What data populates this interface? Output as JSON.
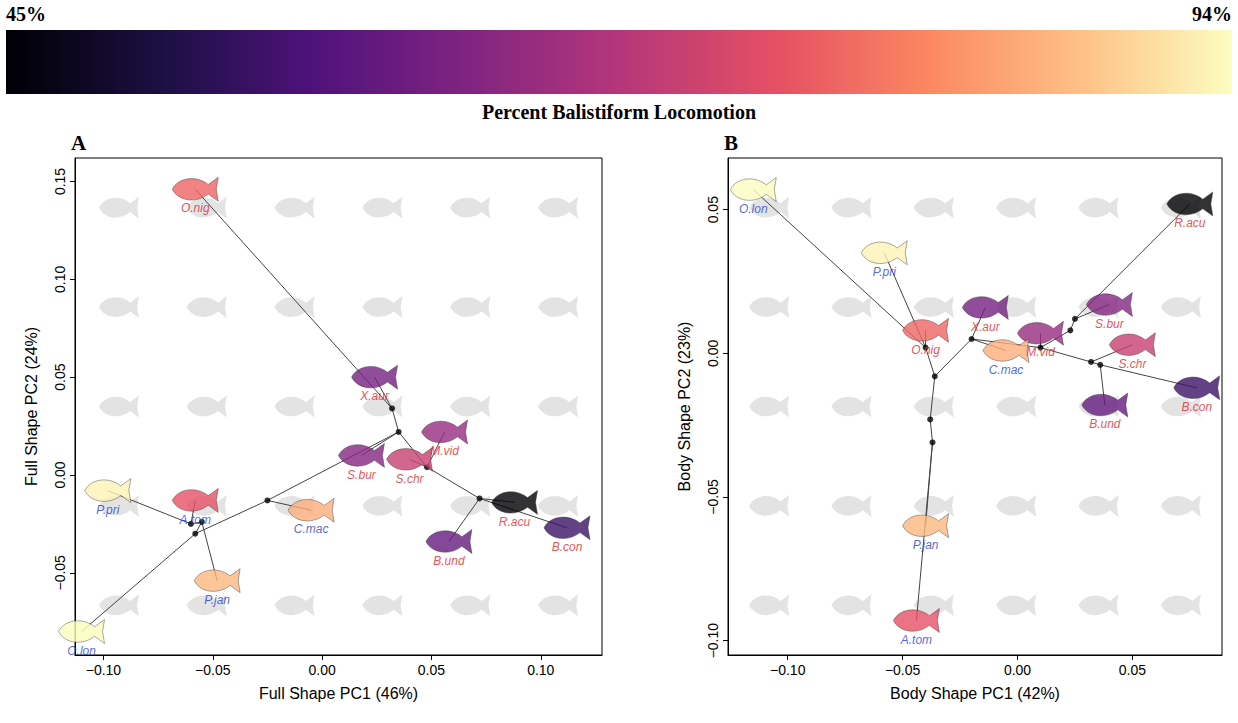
{
  "colorbar": {
    "title": "Percent Balistiform Locomotion",
    "range": [
      45,
      94
    ],
    "ticks": [
      {
        "value": 45,
        "label": "45%"
      },
      {
        "value": 94,
        "label": "94%"
      }
    ]
  },
  "chart_data": [
    {
      "type": "scatter",
      "panel": "A",
      "x_label": "Full Shape PC1 (46%)",
      "y_label": "Full Shape PC2 (24%)",
      "xlim": [
        -0.113,
        0.128
      ],
      "ylim": [
        -0.092,
        0.162
      ],
      "xticks": [
        {
          "value": -0.1,
          "label": "−0.10"
        },
        {
          "value": -0.05,
          "label": "−0.05"
        },
        {
          "value": 0,
          "label": "0.00"
        },
        0.05,
        {
          "value": 0.1,
          "label": "0.10"
        }
      ],
      "yticks": [
        {
          "value": -0.05,
          "label": "−0.05"
        },
        {
          "value": 0,
          "label": "0.00"
        },
        0.05,
        {
          "value": 0.1,
          "label": "0.10"
        },
        0.15
      ],
      "series": [
        {
          "color": "#e3242b",
          "points": [
            {
              "label": "O.nig",
              "x": -0.058,
              "y": 0.146,
              "balistiform": 78
            },
            {
              "label": "X.aur",
              "x": 0.024,
              "y": 0.05,
              "balistiform": 62
            },
            {
              "label": "M.vid",
              "x": 0.056,
              "y": 0.022,
              "balistiform": 66
            },
            {
              "label": "S.bur",
              "x": 0.018,
              "y": 0.01,
              "balistiform": 64
            },
            {
              "label": "S.chr",
              "x": 0.04,
              "y": 0.008,
              "balistiform": 72
            },
            {
              "label": "R.acu",
              "x": 0.088,
              "y": -0.014,
              "balistiform": 45
            },
            {
              "label": "B.und",
              "x": 0.058,
              "y": -0.034,
              "balistiform": 60
            },
            {
              "label": "B.con",
              "x": 0.112,
              "y": -0.027,
              "balistiform": 55
            }
          ]
        },
        {
          "color": "#1f3fd6",
          "points": [
            {
              "label": "A.tom",
              "x": -0.058,
              "y": -0.013,
              "balistiform": 76
            },
            {
              "label": "P.pri",
              "x": -0.098,
              "y": -0.008,
              "balistiform": 93
            },
            {
              "label": "C.mac",
              "x": -0.005,
              "y": -0.018,
              "balistiform": 86
            },
            {
              "label": "P.jan",
              "x": -0.048,
              "y": -0.054,
              "balistiform": 87
            },
            {
              "label": "O.lon",
              "x": -0.11,
              "y": -0.08,
              "balistiform": 94
            }
          ]
        }
      ],
      "nodes": [
        [
          -0.058,
          -0.03
        ],
        [
          -0.055,
          -0.024
        ],
        [
          -0.06,
          -0.025
        ],
        [
          -0.025,
          -0.013
        ],
        [
          0.032,
          0.034
        ],
        [
          0.035,
          0.022
        ],
        [
          0.048,
          0.004
        ],
        [
          0.072,
          -0.012
        ]
      ],
      "branches": [
        [
          -0.11,
          -0.08,
          -0.058,
          -0.03
        ],
        [
          -0.058,
          -0.03,
          -0.025,
          -0.013
        ],
        [
          -0.058,
          -0.03,
          -0.055,
          -0.024
        ],
        [
          -0.055,
          -0.024,
          -0.048,
          -0.054
        ],
        [
          -0.055,
          -0.024,
          -0.06,
          -0.025
        ],
        [
          -0.06,
          -0.025,
          -0.098,
          -0.008
        ],
        [
          -0.06,
          -0.025,
          -0.058,
          -0.013
        ],
        [
          -0.025,
          -0.013,
          -0.005,
          -0.018
        ],
        [
          -0.025,
          -0.013,
          0.035,
          0.022
        ],
        [
          0.035,
          0.022,
          0.032,
          0.034
        ],
        [
          0.032,
          0.034,
          0.024,
          0.05
        ],
        [
          0.032,
          0.034,
          -0.058,
          0.146
        ],
        [
          0.035,
          0.022,
          0.018,
          0.01
        ],
        [
          0.035,
          0.022,
          0.048,
          0.004
        ],
        [
          0.048,
          0.004,
          0.056,
          0.022
        ],
        [
          0.048,
          0.004,
          0.04,
          0.008
        ],
        [
          0.048,
          0.004,
          0.072,
          -0.012
        ],
        [
          0.072,
          -0.012,
          0.058,
          -0.034
        ],
        [
          0.072,
          -0.012,
          0.088,
          -0.014
        ],
        [
          0.072,
          -0.012,
          0.112,
          -0.027
        ]
      ]
    },
    {
      "type": "scatter",
      "panel": "B",
      "x_label": "Body Shape PC1 (42%)",
      "y_label": "Body Shape PC2 (23%)",
      "xlim": [
        -0.126,
        0.089
      ],
      "ylim": [
        -0.105,
        0.068
      ],
      "xticks": [
        {
          "value": -0.1,
          "label": "−0.10"
        },
        {
          "value": -0.05,
          "label": "−0.05"
        },
        {
          "value": 0,
          "label": "0.00"
        },
        0.05
      ],
      "yticks": [
        {
          "value": -0.1,
          "label": "−0.10"
        },
        {
          "value": -0.05,
          "label": "−0.05"
        },
        {
          "value": 0,
          "label": "0.00"
        },
        0.05
      ],
      "series": [
        {
          "color": "#e3242b",
          "points": [
            {
              "label": "O.nig",
              "x": -0.04,
              "y": 0.008,
              "balistiform": 78
            },
            {
              "label": "X.aur",
              "x": -0.014,
              "y": 0.016,
              "balistiform": 62
            },
            {
              "label": "M.vid",
              "x": 0.01,
              "y": 0.007,
              "balistiform": 66
            },
            {
              "label": "S.bur",
              "x": 0.04,
              "y": 0.017,
              "balistiform": 64
            },
            {
              "label": "S.chr",
              "x": 0.05,
              "y": 0.003,
              "balistiform": 72
            },
            {
              "label": "R.acu",
              "x": 0.075,
              "y": 0.052,
              "balistiform": 45
            },
            {
              "label": "B.und",
              "x": 0.038,
              "y": -0.018,
              "balistiform": 60
            },
            {
              "label": "B.con",
              "x": 0.078,
              "y": -0.012,
              "balistiform": 55
            }
          ]
        },
        {
          "color": "#1f3fd6",
          "points": [
            {
              "label": "O.lon",
              "x": -0.115,
              "y": 0.057,
              "balistiform": 94
            },
            {
              "label": "P.pri",
              "x": -0.058,
              "y": 0.035,
              "balistiform": 93
            },
            {
              "label": "C.mac",
              "x": -0.005,
              "y": 0.001,
              "balistiform": 86
            },
            {
              "label": "P.jan",
              "x": -0.04,
              "y": -0.06,
              "balistiform": 87
            },
            {
              "label": "A.tom",
              "x": -0.044,
              "y": -0.093,
              "balistiform": 76
            }
          ]
        }
      ],
      "nodes": [
        [
          -0.04,
          0.002
        ],
        [
          -0.036,
          -0.008
        ],
        [
          -0.038,
          -0.023
        ],
        [
          -0.037,
          -0.031
        ],
        [
          -0.02,
          0.005
        ],
        [
          0.01,
          0.002
        ],
        [
          0.023,
          0.008
        ],
        [
          0.025,
          0.012
        ],
        [
          0.032,
          -0.003
        ],
        [
          0.036,
          -0.004
        ]
      ],
      "branches": [
        [
          -0.115,
          0.057,
          -0.04,
          0.002
        ],
        [
          -0.058,
          0.035,
          -0.04,
          0.002
        ],
        [
          -0.04,
          0.002,
          -0.04,
          0.008
        ],
        [
          -0.04,
          0.002,
          -0.036,
          -0.008
        ],
        [
          -0.036,
          -0.008,
          -0.038,
          -0.023
        ],
        [
          -0.038,
          -0.023,
          -0.037,
          -0.031
        ],
        [
          -0.037,
          -0.031,
          -0.04,
          -0.06
        ],
        [
          -0.037,
          -0.031,
          -0.044,
          -0.093
        ],
        [
          -0.036,
          -0.008,
          -0.02,
          0.005
        ],
        [
          -0.02,
          0.005,
          -0.014,
          0.016
        ],
        [
          -0.02,
          0.005,
          -0.005,
          0.001
        ],
        [
          -0.02,
          0.005,
          0.01,
          0.002
        ],
        [
          0.01,
          0.002,
          0.01,
          0.007
        ],
        [
          0.01,
          0.002,
          0.023,
          0.008
        ],
        [
          0.023,
          0.008,
          0.025,
          0.012
        ],
        [
          0.025,
          0.012,
          0.04,
          0.017
        ],
        [
          0.025,
          0.012,
          0.075,
          0.052
        ],
        [
          0.01,
          0.002,
          0.032,
          -0.003
        ],
        [
          0.032,
          -0.003,
          0.036,
          -0.004
        ],
        [
          0.032,
          -0.003,
          0.05,
          0.003
        ],
        [
          0.036,
          -0.004,
          0.038,
          -0.018
        ],
        [
          0.036,
          -0.004,
          0.078,
          -0.012
        ]
      ]
    }
  ]
}
